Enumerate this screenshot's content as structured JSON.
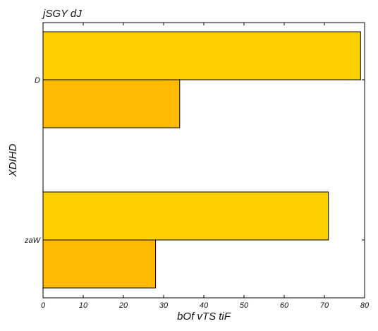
{
  "chart_data": {
    "type": "bar",
    "orientation": "horizontal",
    "title": "jSGY dJ",
    "xlabel": "bOf  vTS tiF",
    "ylabel": "XDIHD",
    "categories": [
      "D",
      "zaW"
    ],
    "series": [
      {
        "values": [
          79,
          71
        ],
        "color": "#FFD000"
      },
      {
        "values": [
          34,
          28
        ],
        "color": "#FFBA00"
      }
    ],
    "xlim": [
      0,
      80
    ],
    "xticks": [
      0,
      10,
      20,
      30,
      40,
      50,
      60,
      70,
      80
    ],
    "grid": false,
    "legend": "none"
  }
}
